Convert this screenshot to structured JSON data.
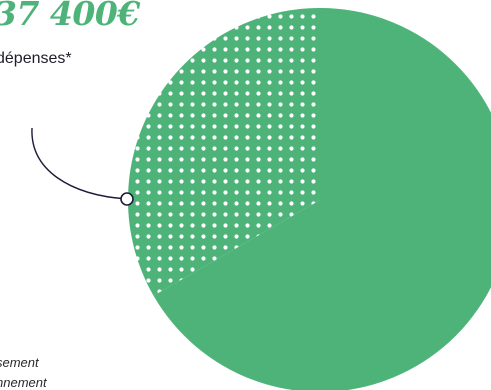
{
  "header": {
    "amount": "37 400€",
    "subtitle": "dépenses*"
  },
  "footnotes": [
    "sement",
    "nnement"
  ],
  "colors": {
    "accent": "#4db378",
    "connector": "#1e1b36"
  },
  "chart_data": {
    "type": "pie",
    "slices": [
      {
        "fill": "solid",
        "percent": 66.7,
        "color": "#4db378"
      },
      {
        "fill": "dotted",
        "percent": 33.3,
        "color": "#4db378"
      }
    ]
  }
}
